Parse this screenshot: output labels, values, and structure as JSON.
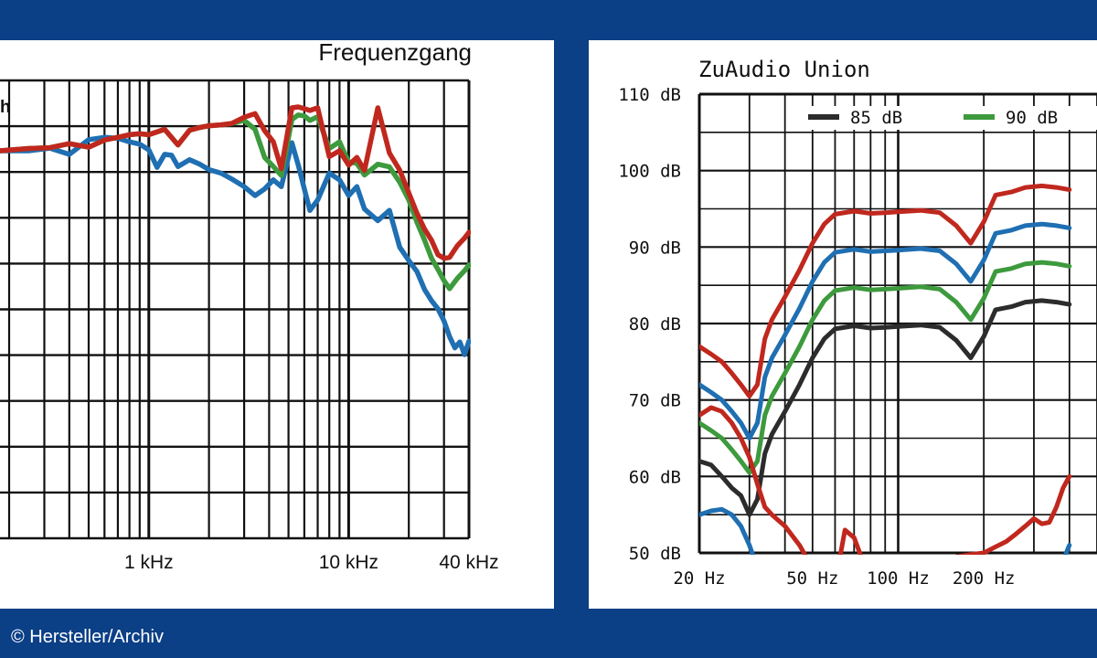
{
  "credit": "© Hersteller/Archiv",
  "chart_data": [
    {
      "type": "line",
      "title": "Frequenzgang",
      "corner_label": "h",
      "x_scale": "log",
      "x_tick_labels": [
        "1 kHz",
        "10 kHz",
        "40 kHz"
      ],
      "x_ticks_hz": [
        1000,
        10000,
        40000
      ],
      "xlim_hz": [
        180,
        40000
      ],
      "grid": true,
      "series": [
        {
          "color": "#c0281e",
          "x": [
            180,
            250,
            320,
            400,
            500,
            600,
            700,
            800,
            900,
            1000,
            1200,
            1400,
            1600,
            1800,
            2000,
            2300,
            2600,
            3000,
            3400,
            3800,
            4200,
            4600,
            5200,
            5600,
            6000,
            6400,
            7000,
            8000,
            9000,
            10000,
            11000,
            12000,
            14000,
            16000,
            18000,
            20000,
            22000,
            24000,
            26000,
            28000,
            30000,
            32000,
            35000,
            38000,
            40000
          ],
          "y": [
            0.0,
            0.5,
            0.7,
            1.6,
            0.8,
            2.4,
            3.0,
            3.6,
            3.8,
            3.6,
            4.8,
            1.3,
            4.6,
            5.2,
            5.6,
            5.8,
            6.1,
            7.5,
            8.3,
            4.5,
            2.0,
            -4.0,
            9.6,
            9.8,
            9.4,
            9.0,
            9.6,
            -1.3,
            0.0,
            -3.2,
            -1.5,
            -4.4,
            9.6,
            -0.5,
            -4.3,
            -9.4,
            -14.0,
            -17.5,
            -20.0,
            -23.2,
            -24.0,
            -23.8,
            -21.2,
            -19.5,
            -18.2
          ]
        },
        {
          "color": "#3d9a3d",
          "x": [
            180,
            250,
            320,
            400,
            500,
            600,
            700,
            800,
            900,
            1000,
            1200,
            1400,
            1600,
            1800,
            2000,
            2300,
            2600,
            3000,
            3400,
            3800,
            4200,
            4600,
            5200,
            5600,
            6000,
            6400,
            7000,
            8000,
            9000,
            10000,
            11000,
            12000,
            14000,
            16000,
            18000,
            20000,
            22000,
            24000,
            26000,
            28000,
            30000,
            32000,
            35000,
            38000,
            40000
          ],
          "y": [
            0.0,
            0.5,
            0.7,
            1.6,
            0.8,
            2.4,
            3.0,
            3.6,
            3.8,
            3.6,
            4.8,
            1.3,
            4.6,
            5.2,
            5.6,
            5.8,
            6.1,
            6.8,
            4.8,
            -1.5,
            -3.5,
            -5.5,
            7.0,
            8.0,
            7.8,
            6.8,
            7.6,
            0.5,
            2.0,
            -2.5,
            -2.8,
            -5.4,
            -3.0,
            -3.6,
            -7.0,
            -11.0,
            -16.0,
            -20.0,
            -24.0,
            -26.5,
            -29.0,
            -30.8,
            -28.5,
            -26.8,
            -25.5
          ]
        },
        {
          "color": "#1f6fb2",
          "x": [
            180,
            250,
            320,
            400,
            500,
            600,
            700,
            800,
            900,
            1000,
            1100,
            1200,
            1300,
            1400,
            1600,
            1800,
            2000,
            2300,
            2600,
            3000,
            3400,
            3800,
            4200,
            4600,
            5200,
            5600,
            6000,
            6400,
            7000,
            8000,
            9000,
            10000,
            11000,
            12000,
            14000,
            16000,
            18000,
            20000,
            22000,
            24000,
            26000,
            28000,
            30000,
            32000,
            34000,
            36000,
            38000,
            40000
          ],
          "y": [
            0.0,
            0.0,
            0.6,
            -0.8,
            2.5,
            3.0,
            2.8,
            2.0,
            1.5,
            0.2,
            -3.7,
            -0.8,
            -1.0,
            -3.5,
            -2.0,
            -3.0,
            -4.2,
            -5.0,
            -6.3,
            -8.0,
            -10.0,
            -8.5,
            -6.5,
            -8.0,
            1.8,
            -3.2,
            -8.5,
            -13.3,
            -11.0,
            -5.0,
            -6.5,
            -10.0,
            -8.0,
            -13.0,
            -15.6,
            -13.3,
            -21.5,
            -24.5,
            -27.0,
            -31.0,
            -33.5,
            -35.3,
            -38.0,
            -41.5,
            -44.0,
            -42.7,
            -45.5,
            -42.5
          ]
        }
      ]
    },
    {
      "type": "line",
      "title": "ZuAudio Union",
      "x_scale": "log",
      "x_tick_labels": [
        "20 Hz",
        "50 Hz",
        "100 Hz",
        "200 Hz"
      ],
      "x_ticks_hz": [
        20,
        50,
        100,
        200
      ],
      "y_tick_labels": [
        "110 dB",
        "100 dB",
        "90 dB",
        "80 dB",
        "70 dB",
        "60 dB",
        "50 dB"
      ],
      "y_ticks_db": [
        110,
        100,
        90,
        80,
        70,
        60,
        50
      ],
      "xlim_hz": [
        20,
        500
      ],
      "ylim_db": [
        50,
        110
      ],
      "grid": true,
      "legend": {
        "position": "top",
        "entries": [
          {
            "label": "85 dB",
            "color": "#2c2c2c"
          },
          {
            "label": "90 dB",
            "color": "#3d9a3d"
          }
        ]
      },
      "series": [
        {
          "color": "#2c2c2c",
          "x": [
            20,
            22,
            24,
            26,
            28,
            30,
            32,
            34,
            36,
            40,
            45,
            50,
            55,
            60,
            70,
            80,
            90,
            100,
            120,
            140,
            160,
            180,
            200,
            220,
            250,
            280,
            320,
            360,
            400
          ],
          "y": [
            62,
            61.5,
            60,
            58.5,
            57.5,
            55,
            57,
            63,
            65.5,
            68.5,
            72,
            75.5,
            78,
            79.3,
            79.7,
            79.4,
            79.5,
            79.6,
            79.8,
            79.5,
            77.8,
            75.5,
            78.3,
            81.8,
            82.2,
            82.8,
            83,
            82.8,
            82.5
          ]
        },
        {
          "color": "#3d9a3d",
          "x": [
            20,
            22,
            24,
            26,
            28,
            30,
            32,
            34,
            36,
            40,
            45,
            50,
            55,
            60,
            70,
            80,
            90,
            100,
            120,
            140,
            160,
            180,
            200,
            220,
            250,
            280,
            320,
            360,
            400
          ],
          "y": [
            67,
            66,
            65,
            63.5,
            62,
            60.5,
            62,
            68,
            70.5,
            73.5,
            77,
            80.5,
            83,
            84.3,
            84.7,
            84.4,
            84.5,
            84.6,
            84.8,
            84.5,
            82.8,
            80.5,
            83.3,
            86.8,
            87.2,
            87.8,
            88,
            87.8,
            87.5
          ]
        },
        {
          "color": "#1f6fb2",
          "x": [
            20,
            22,
            24,
            26,
            28,
            30,
            32,
            34,
            36,
            40,
            45,
            50,
            55,
            60,
            70,
            80,
            90,
            100,
            120,
            140,
            160,
            180,
            200,
            220,
            250,
            280,
            320,
            360,
            400
          ],
          "y": [
            72,
            71,
            70,
            68.5,
            67,
            65,
            67,
            73,
            75.5,
            78.5,
            82,
            85.5,
            88,
            89.3,
            89.7,
            89.4,
            89.5,
            89.6,
            89.8,
            89.5,
            87.8,
            85.5,
            88.3,
            91.8,
            92.2,
            92.8,
            93,
            92.8,
            92.5
          ]
        },
        {
          "color": "#c0281e",
          "x": [
            20,
            22,
            24,
            26,
            28,
            30,
            32,
            34,
            36,
            40,
            45,
            50,
            55,
            60,
            70,
            80,
            90,
            100,
            120,
            140,
            160,
            180,
            200,
            220,
            250,
            280,
            320,
            360,
            400
          ],
          "y": [
            77,
            76,
            75,
            73.5,
            72,
            70.5,
            72,
            78,
            80.5,
            83.5,
            87,
            90.5,
            93,
            94.3,
            94.7,
            94.4,
            94.5,
            94.6,
            94.8,
            94.5,
            92.8,
            90.5,
            93.3,
            96.8,
            97.2,
            97.8,
            98,
            97.8,
            97.5
          ]
        },
        {
          "color": "#c0281e",
          "x": [
            20,
            22,
            24,
            26,
            28,
            30,
            32,
            34,
            36,
            40,
            45,
            50,
            55,
            60,
            65,
            70,
            75,
            80,
            85,
            90,
            95,
            100,
            110,
            120,
            130,
            140,
            150,
            160,
            180,
            200,
            220,
            240,
            260,
            280,
            300,
            320,
            340,
            360,
            380,
            400
          ],
          "y": [
            68,
            69,
            68.5,
            67,
            65,
            62.5,
            59,
            56,
            55,
            53.5,
            51,
            48,
            44,
            46,
            53,
            52,
            49,
            48,
            49,
            48,
            46,
            45,
            47,
            46,
            43,
            44,
            48,
            49.5,
            49.8,
            50,
            50.8,
            51.5,
            52.5,
            53.5,
            54.5,
            53.8,
            54,
            56,
            58.5,
            60
          ]
        },
        {
          "color": "#1f6fb2",
          "x": [
            20,
            22,
            24,
            26,
            28,
            30,
            32,
            34,
            36,
            40,
            45,
            50,
            350,
            360,
            380,
            400
          ],
          "y": [
            55,
            55.5,
            55.7,
            55,
            53.5,
            51,
            48,
            46,
            44,
            42,
            40,
            38,
            40,
            46,
            49,
            51
          ]
        }
      ]
    }
  ]
}
